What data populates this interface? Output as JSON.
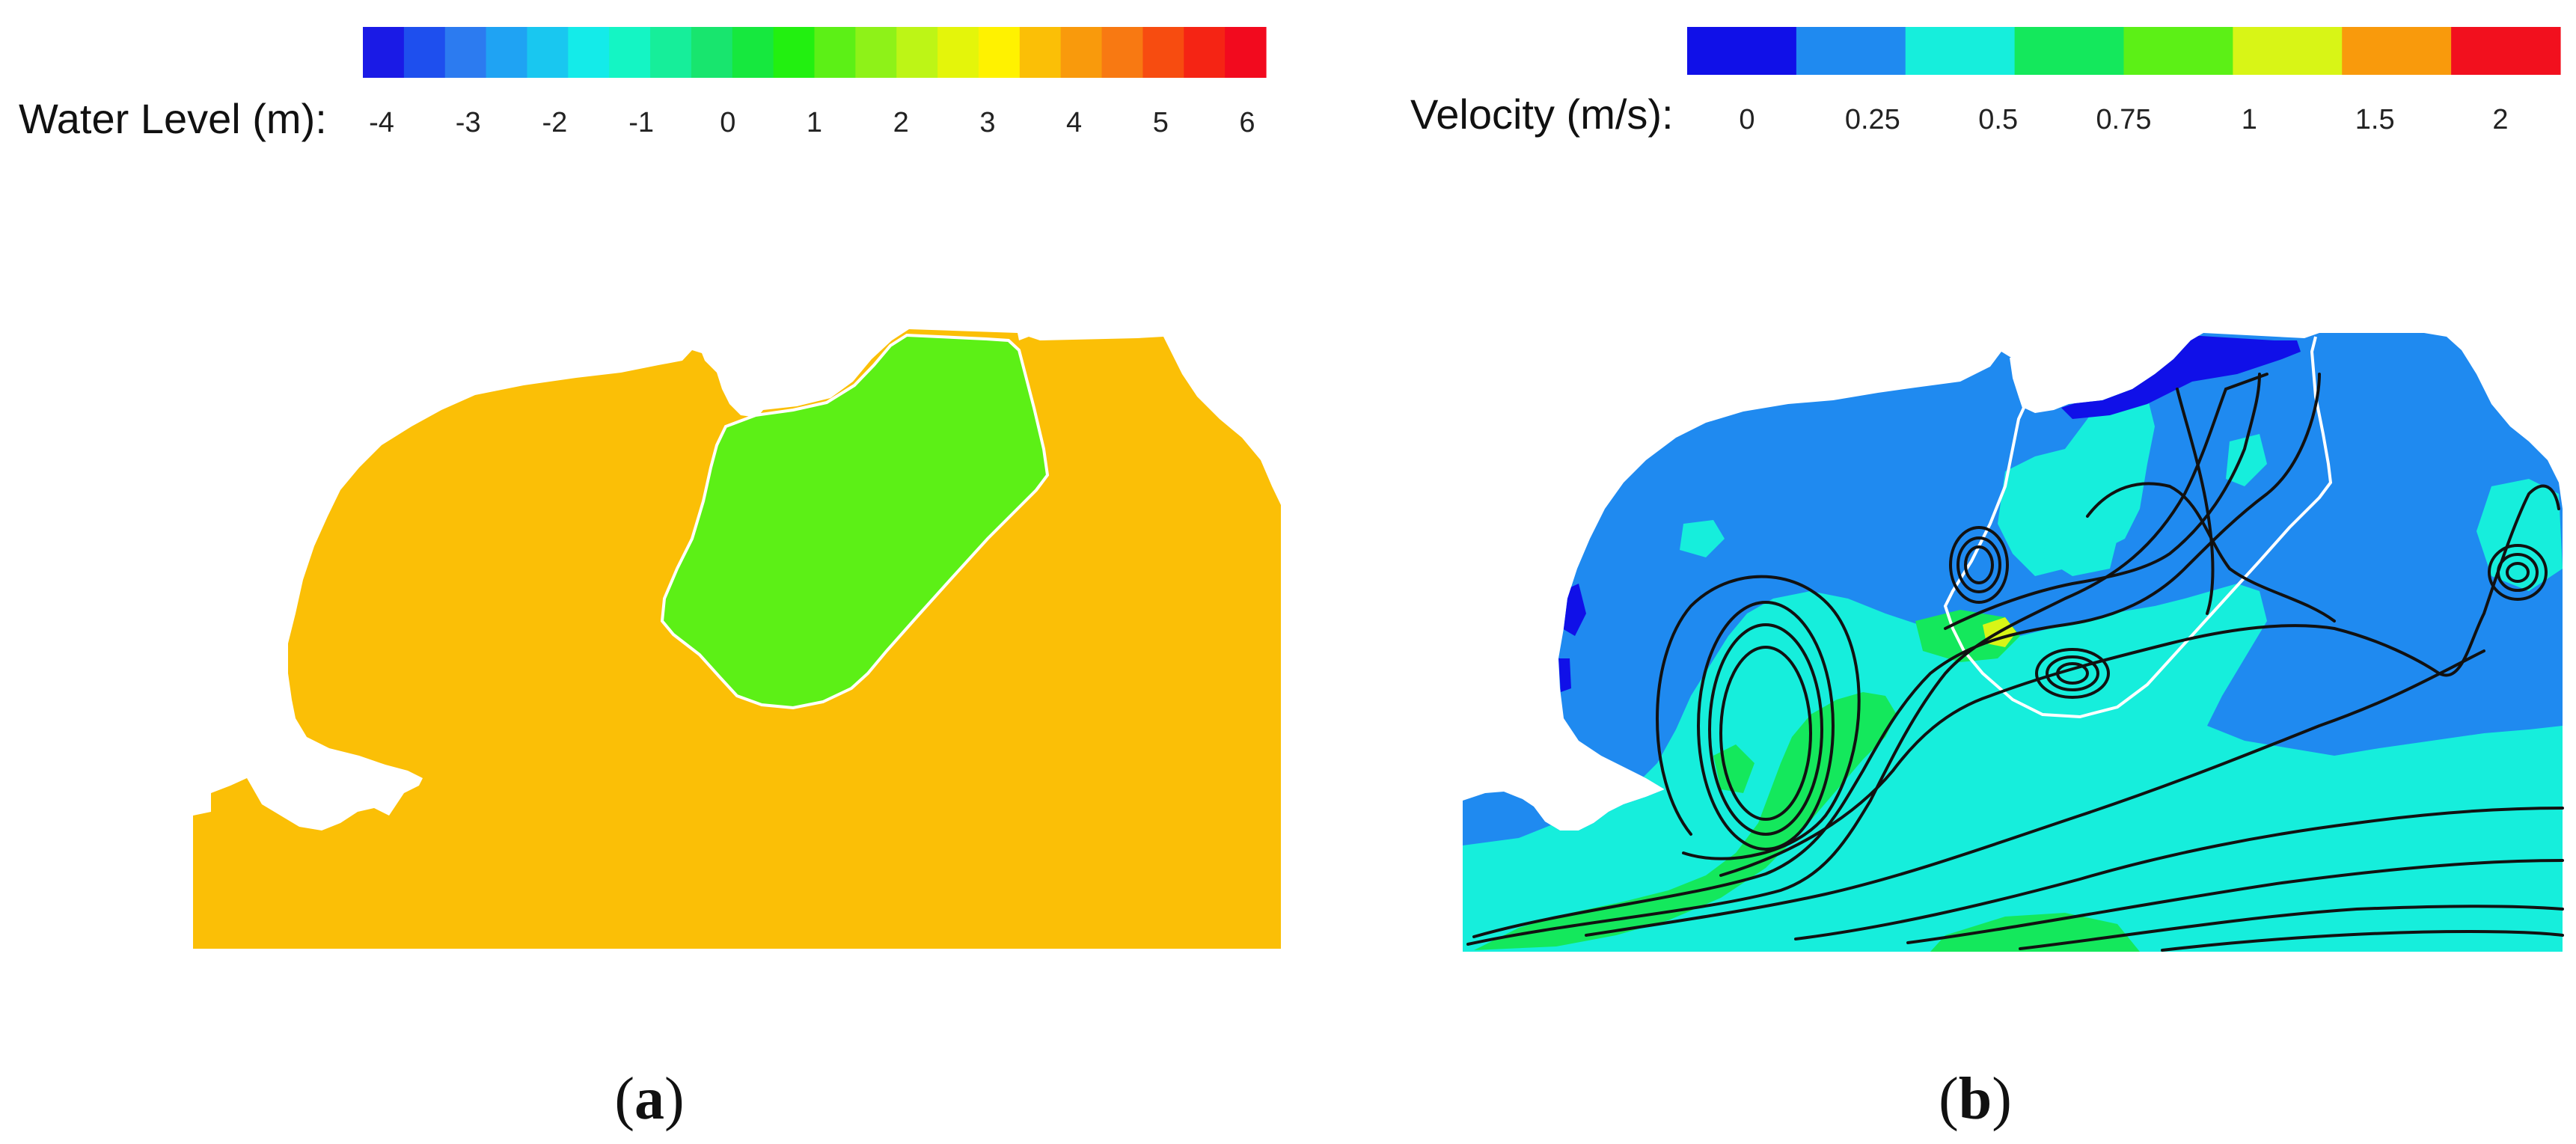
{
  "panels": [
    {
      "id": "a",
      "label_open": "(",
      "label_letter": "a",
      "label_close": ")",
      "legend": {
        "title": "Water Level (m):",
        "ticks": [
          "-4",
          "-3",
          "-2",
          "-1",
          "0",
          "1",
          "2",
          "3",
          "4",
          "5",
          "6"
        ],
        "colors": [
          "#1A1AE6",
          "#1E4FEE",
          "#2C7BF0",
          "#1FA3F3",
          "#19C7F0",
          "#14EBE9",
          "#14F5C4",
          "#16EE9A",
          "#18E56E",
          "#16E83E",
          "#22F010",
          "#5CF016",
          "#8EF218",
          "#BDF516",
          "#E4F50A",
          "#FFF200",
          "#FBBF06",
          "#F99A0C",
          "#F87912",
          "#F74C10",
          "#F52414",
          "#F20A1E"
        ]
      },
      "fields": [
        {
          "name": "water-region-orange",
          "color": "#FBBF06",
          "value_m": 4.5
        },
        {
          "name": "water-region-green",
          "color": "#5CF016",
          "value_m": 1.5
        }
      ]
    },
    {
      "id": "b",
      "label_open": "(",
      "label_letter": "b",
      "label_close": ")",
      "legend": {
        "title": "Velocity (m/s):",
        "ticks": [
          "0",
          "0.25",
          "0.5",
          "0.75",
          "1",
          "1.5",
          "2"
        ],
        "colors": [
          "#1010E8",
          "#1F8AF0",
          "#16EEDC",
          "#14E85C",
          "#5CF016",
          "#D8F516",
          "#F99A0C",
          "#F2101E"
        ]
      },
      "fields": [
        {
          "name": "velocity-low",
          "color": "#1F8AF0"
        },
        {
          "name": "velocity-mid",
          "color": "#16EEDC"
        },
        {
          "name": "velocity-high",
          "color": "#14E85C"
        },
        {
          "name": "velocity-peak",
          "color": "#D8F516"
        },
        {
          "name": "velocity-stagnant",
          "color": "#1010E8"
        }
      ],
      "streamline_color": "#111111"
    }
  ]
}
